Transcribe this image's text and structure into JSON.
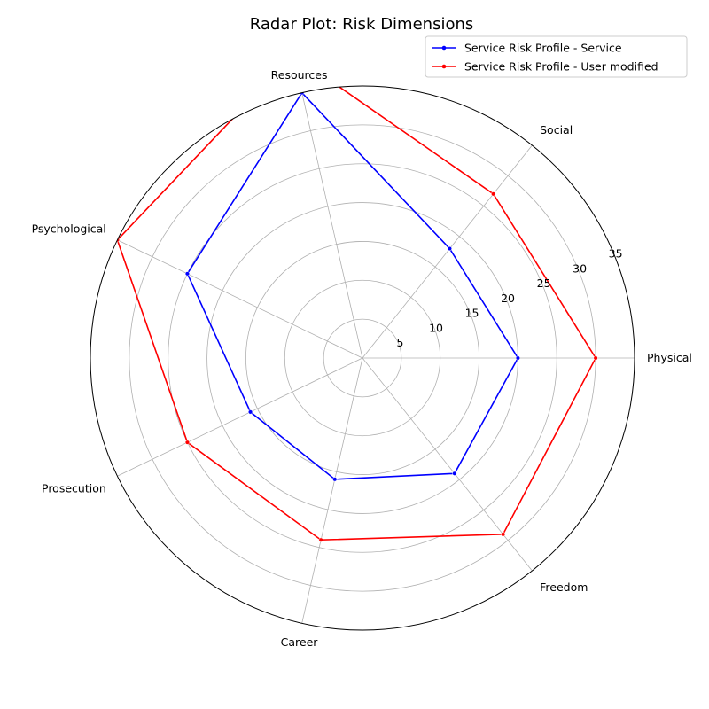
{
  "chart_data": {
    "type": "radar",
    "title": "Radar Plot: Risk Dimensions",
    "categories": [
      "Physical",
      "Social",
      "Resources",
      "Psychological",
      "Prosecution",
      "Career",
      "Freedom"
    ],
    "radial_ticks": [
      5,
      10,
      15,
      20,
      25,
      30,
      35
    ],
    "rlim": [
      0,
      35
    ],
    "grid": true,
    "legend_position": "top-right",
    "series": [
      {
        "name": "Service Risk Profile - Service",
        "color": "#0000ff",
        "values": [
          20,
          18,
          35,
          25,
          16,
          16,
          19
        ]
      },
      {
        "name": "Service Risk Profile - User modified",
        "color": "#ff0000",
        "values": [
          30,
          27,
          40,
          35,
          25,
          24,
          29
        ]
      }
    ]
  }
}
